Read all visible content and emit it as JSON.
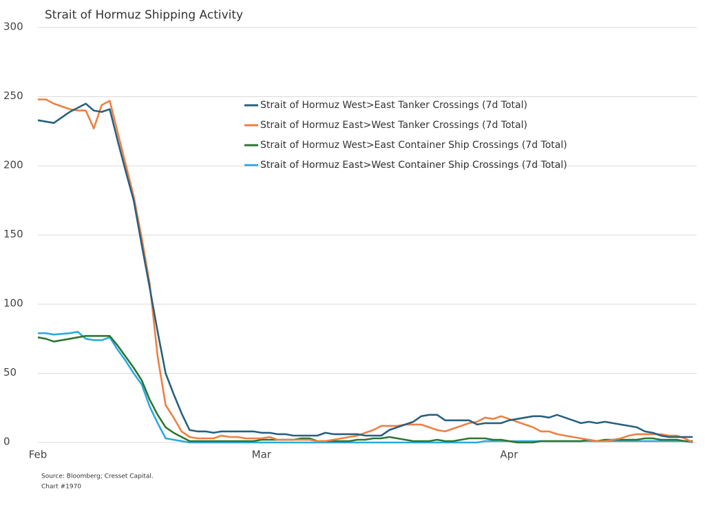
{
  "chart_data": {
    "type": "line",
    "title": "Strait of Hormuz Shipping Activity",
    "source": "Source: Bloomberg; Cresset Capital.",
    "note": "Chart #1970",
    "categories": [
      "Feb",
      null,
      null,
      null,
      null,
      null,
      null,
      null,
      null,
      null,
      null,
      null,
      null,
      null,
      null,
      null,
      null,
      null,
      null,
      null,
      null,
      null,
      null,
      null,
      null,
      null,
      null,
      null,
      "Mar",
      null,
      null,
      null,
      null,
      null,
      null,
      null,
      null,
      null,
      null,
      null,
      null,
      null,
      null,
      null,
      null,
      null,
      null,
      null,
      null,
      null,
      null,
      null,
      null,
      null,
      null,
      null,
      null,
      null,
      null,
      "Apr",
      null,
      null,
      null,
      null,
      null,
      null,
      null,
      null,
      null,
      null,
      null,
      null,
      null,
      null,
      null,
      null,
      null,
      null,
      null,
      null,
      null,
      null,
      null
    ],
    "ylim": [
      0,
      300
    ],
    "yticks": [
      0,
      50,
      100,
      150,
      200,
      250,
      300
    ],
    "grid": true,
    "legend": "top",
    "series": [
      {
        "name": "Strait of Hormuz West>East Tanker Crossings (7d Total)",
        "color": "#27607f",
        "values": [
          233,
          232,
          231,
          235,
          239,
          242,
          245,
          240,
          239,
          241,
          218,
          196,
          175,
          143,
          112,
          80,
          50,
          35,
          21,
          9,
          8,
          8,
          7,
          8,
          8,
          8,
          8,
          8,
          7,
          7,
          6,
          6,
          5,
          5,
          5,
          5,
          7,
          6,
          6,
          6,
          6,
          5,
          5,
          5,
          9,
          11,
          13,
          15,
          19,
          20,
          20,
          16,
          16,
          16,
          16,
          13,
          14,
          14,
          14,
          16,
          17,
          18,
          19,
          19,
          18,
          20,
          18,
          16,
          14,
          15,
          14,
          15,
          14,
          13,
          12,
          11,
          8,
          7,
          5,
          4,
          4,
          4,
          4
        ]
      },
      {
        "name": "Strait of Hormuz East>West Tanker Crossings (7d Total)",
        "color": "#ee7f41",
        "values": [
          248,
          248,
          245,
          243,
          241,
          240,
          240,
          227,
          244,
          247,
          224,
          201,
          178,
          148,
          115,
          62,
          27,
          18,
          8,
          4,
          3,
          3,
          3,
          5,
          4,
          4,
          3,
          3,
          3,
          4,
          2,
          2,
          2,
          2,
          2,
          1,
          1,
          2,
          3,
          4,
          5,
          7,
          9,
          12,
          12,
          12,
          13,
          13,
          13,
          11,
          9,
          8,
          10,
          12,
          14,
          15,
          18,
          17,
          19,
          17,
          15,
          13,
          11,
          8,
          8,
          6,
          5,
          4,
          3,
          2,
          1,
          1,
          2,
          3,
          5,
          6,
          6,
          6,
          6,
          5,
          5,
          3,
          0
        ]
      },
      {
        "name": "Strait of Hormuz West>East Container Ship Crossings (7d Total)",
        "color": "#2e7430",
        "values": [
          76,
          75,
          73,
          74,
          75,
          76,
          77,
          77,
          77,
          77,
          70,
          62,
          54,
          45,
          31,
          20,
          11,
          7,
          4,
          1,
          1,
          1,
          1,
          1,
          1,
          1,
          1,
          1,
          2,
          2,
          2,
          2,
          2,
          3,
          3,
          1,
          1,
          1,
          1,
          1,
          2,
          2,
          3,
          3,
          4,
          3,
          2,
          1,
          1,
          1,
          2,
          1,
          1,
          2,
          3,
          3,
          3,
          2,
          2,
          1,
          0,
          0,
          0,
          1,
          1,
          1,
          1,
          1,
          1,
          2,
          1,
          2,
          2,
          2,
          2,
          2,
          3,
          3,
          2,
          2,
          2,
          1,
          1
        ]
      },
      {
        "name": "Strait of Hormuz East>West Container Ship Crossings (7d Total)",
        "color": "#2aa9df",
        "values": [
          79,
          79,
          78,
          78.5,
          79,
          80,
          75,
          74,
          74,
          76,
          67,
          59,
          50,
          42,
          26,
          14,
          3,
          2,
          1,
          0,
          0,
          0,
          0,
          0,
          0,
          0,
          0,
          0,
          0,
          0,
          0,
          0,
          0,
          0,
          0,
          0,
          0,
          0,
          0,
          0,
          0,
          0,
          0,
          0,
          0,
          0,
          0,
          0,
          0,
          0,
          0,
          0,
          0,
          0,
          0,
          0,
          1,
          1,
          1,
          1,
          1,
          1,
          1,
          1,
          1,
          1,
          1,
          1,
          1,
          1,
          1,
          1,
          1,
          1,
          1,
          1,
          1,
          1,
          1,
          1,
          1,
          1,
          0
        ]
      }
    ]
  }
}
